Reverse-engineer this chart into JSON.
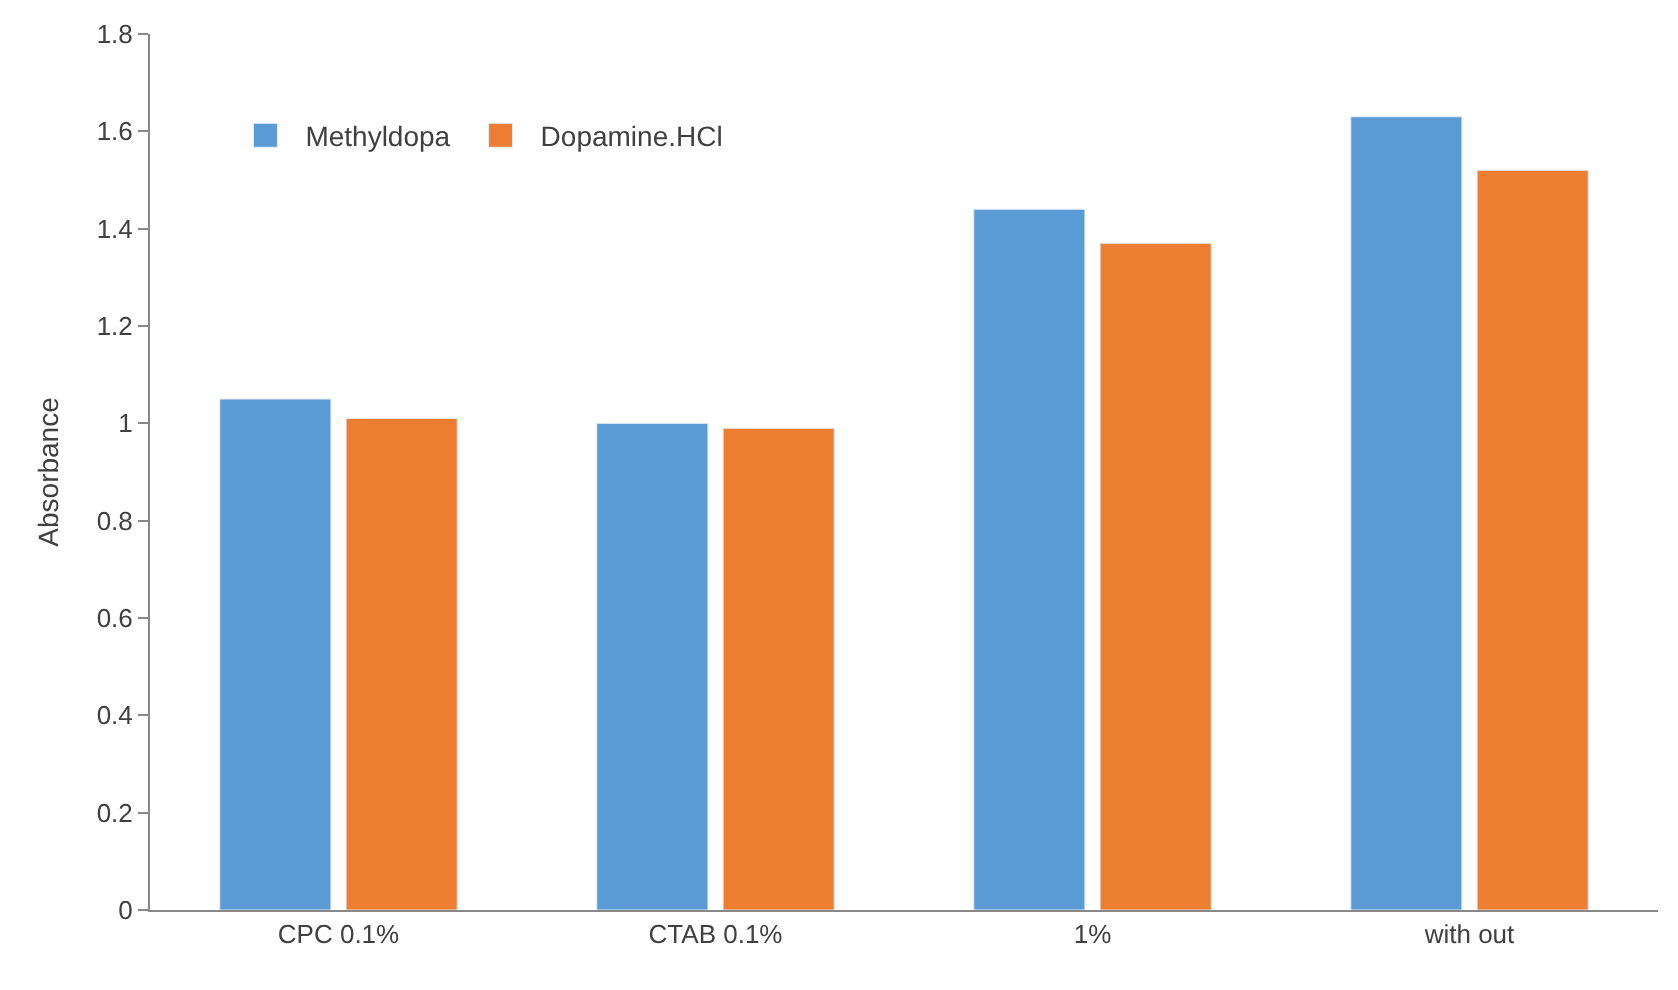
{
  "chart_data": {
    "type": "bar",
    "ylabel": "Absorbance",
    "categories": [
      "CPC 0.1%",
      "CTAB 0.1%",
      "1%",
      "with out"
    ],
    "series": [
      {
        "name": "Methyldopa",
        "color": "#5b9bd5",
        "values": [
          1.05,
          1.0,
          1.44,
          1.63
        ]
      },
      {
        "name": "Dopamine.HCl",
        "color": "#ed7d31",
        "values": [
          1.01,
          0.99,
          1.37,
          1.52
        ]
      }
    ],
    "ylim": [
      0,
      1.8
    ],
    "yticks": [
      0,
      0.2,
      0.4,
      0.6,
      0.8,
      1,
      1.2,
      1.4,
      1.6,
      1.8
    ],
    "grid": false,
    "legend": "top left"
  }
}
